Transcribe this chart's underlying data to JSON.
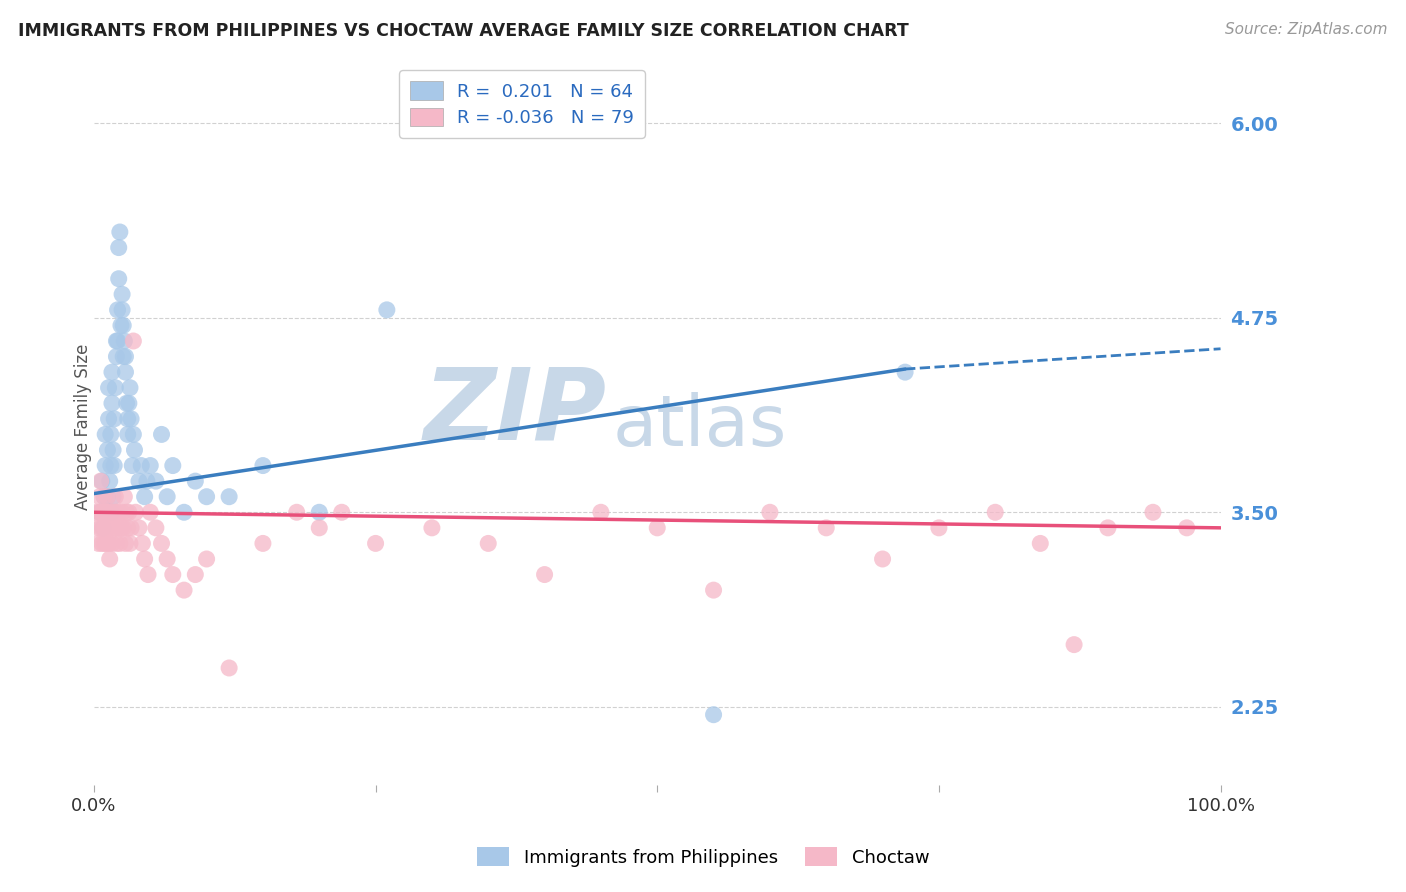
{
  "title": "IMMIGRANTS FROM PHILIPPINES VS CHOCTAW AVERAGE FAMILY SIZE CORRELATION CHART",
  "source": "Source: ZipAtlas.com",
  "ylabel": "Average Family Size",
  "xlim": [
    0,
    1
  ],
  "ylim": [
    1.75,
    6.35
  ],
  "yticks": [
    2.25,
    3.5,
    4.75,
    6.0
  ],
  "xticks": [
    0.0,
    0.25,
    0.5,
    0.75,
    1.0
  ],
  "xtick_labels": [
    "0.0%",
    "",
    "",
    "",
    "100.0%"
  ],
  "color_blue": "#a8c8e8",
  "color_blue_line": "#3a7dbf",
  "color_pink": "#f5b8c8",
  "color_pink_line": "#e8507a",
  "label1": "Immigrants from Philippines",
  "label2": "Choctaw",
  "scatter1_x": [
    0.005,
    0.007,
    0.008,
    0.009,
    0.01,
    0.01,
    0.011,
    0.012,
    0.012,
    0.013,
    0.013,
    0.014,
    0.015,
    0.015,
    0.015,
    0.016,
    0.016,
    0.017,
    0.017,
    0.018,
    0.018,
    0.019,
    0.02,
    0.02,
    0.021,
    0.021,
    0.022,
    0.022,
    0.023,
    0.024,
    0.025,
    0.025,
    0.026,
    0.026,
    0.027,
    0.028,
    0.028,
    0.029,
    0.03,
    0.03,
    0.031,
    0.032,
    0.033,
    0.034,
    0.035,
    0.036,
    0.04,
    0.042,
    0.045,
    0.047,
    0.05,
    0.055,
    0.06,
    0.065,
    0.07,
    0.08,
    0.09,
    0.1,
    0.12,
    0.15,
    0.2,
    0.26,
    0.55,
    0.72
  ],
  "scatter1_y": [
    3.5,
    3.7,
    3.4,
    3.6,
    3.8,
    4.0,
    3.5,
    3.6,
    3.9,
    4.1,
    4.3,
    3.7,
    3.5,
    3.8,
    4.0,
    4.2,
    4.4,
    3.6,
    3.9,
    3.8,
    4.1,
    4.3,
    4.5,
    4.6,
    4.6,
    4.8,
    5.0,
    5.2,
    5.3,
    4.7,
    4.8,
    4.9,
    4.5,
    4.7,
    4.6,
    4.4,
    4.5,
    4.2,
    4.0,
    4.1,
    4.2,
    4.3,
    4.1,
    3.8,
    4.0,
    3.9,
    3.7,
    3.8,
    3.6,
    3.7,
    3.8,
    3.7,
    4.0,
    3.6,
    3.8,
    3.5,
    3.7,
    3.6,
    3.6,
    3.8,
    3.5,
    4.8,
    2.2,
    4.4
  ],
  "scatter2_x": [
    0.002,
    0.003,
    0.004,
    0.005,
    0.005,
    0.006,
    0.006,
    0.007,
    0.007,
    0.008,
    0.008,
    0.009,
    0.009,
    0.01,
    0.01,
    0.011,
    0.011,
    0.012,
    0.012,
    0.013,
    0.013,
    0.014,
    0.015,
    0.015,
    0.016,
    0.017,
    0.018,
    0.019,
    0.02,
    0.02,
    0.021,
    0.022,
    0.023,
    0.024,
    0.025,
    0.026,
    0.027,
    0.028,
    0.029,
    0.03,
    0.031,
    0.032,
    0.033,
    0.035,
    0.037,
    0.04,
    0.043,
    0.045,
    0.048,
    0.05,
    0.055,
    0.06,
    0.065,
    0.07,
    0.08,
    0.09,
    0.1,
    0.12,
    0.15,
    0.18,
    0.2,
    0.22,
    0.25,
    0.3,
    0.35,
    0.4,
    0.45,
    0.5,
    0.55,
    0.6,
    0.65,
    0.7,
    0.75,
    0.8,
    0.84,
    0.87,
    0.9,
    0.94,
    0.97
  ],
  "scatter2_y": [
    3.5,
    3.4,
    3.3,
    3.6,
    3.5,
    3.4,
    3.7,
    3.3,
    3.5,
    3.4,
    3.5,
    3.6,
    3.3,
    3.5,
    3.4,
    3.3,
    3.5,
    3.4,
    3.6,
    3.3,
    3.5,
    3.2,
    3.4,
    3.5,
    3.3,
    3.5,
    3.4,
    3.6,
    3.5,
    3.3,
    3.4,
    3.5,
    3.3,
    3.4,
    3.5,
    3.4,
    3.6,
    3.3,
    3.5,
    3.4,
    3.5,
    3.3,
    3.4,
    4.6,
    3.5,
    3.4,
    3.3,
    3.2,
    3.1,
    3.5,
    3.4,
    3.3,
    3.2,
    3.1,
    3.0,
    3.1,
    3.2,
    2.5,
    3.3,
    3.5,
    3.4,
    3.5,
    3.3,
    3.4,
    3.3,
    3.1,
    3.5,
    3.4,
    3.0,
    3.5,
    3.4,
    3.2,
    3.4,
    3.5,
    3.3,
    2.65,
    3.4,
    3.5,
    3.4
  ],
  "trend1_x0": 0.0,
  "trend1_x1": 0.72,
  "trend1_y0": 3.62,
  "trend1_y1": 4.42,
  "trend1_ext_x0": 0.72,
  "trend1_ext_x1": 1.0,
  "trend1_ext_y0": 4.42,
  "trend1_ext_y1": 4.55,
  "trend2_x0": 0.0,
  "trend2_x1": 1.0,
  "trend2_y0": 3.5,
  "trend2_y1": 3.4,
  "background_color": "#ffffff",
  "grid_color": "#cccccc",
  "title_color": "#222222",
  "tick_color": "#4a90d9",
  "watermark_zip": "ZIP",
  "watermark_atlas": "atlas",
  "watermark_color": "#c8d8e8"
}
